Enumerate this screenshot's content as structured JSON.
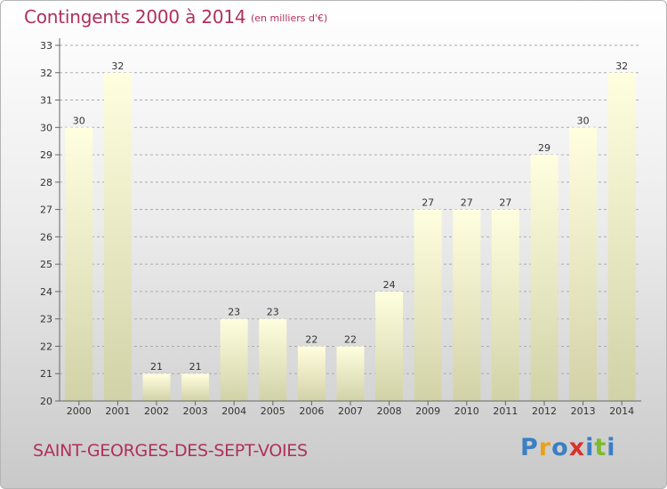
{
  "header": {
    "title": "Contingents 2000 à 2014",
    "subtitle": "(en milliers d'€)"
  },
  "footer": {
    "commune": "SAINT-GEORGES-DES-SEPT-VOIES",
    "logo_letters": [
      "P",
      "r",
      "o",
      "x",
      "i",
      "t",
      "i"
    ],
    "logo_colors": [
      "#3b7fc4",
      "#e8a21a",
      "#3b7fc4",
      "#d8322c",
      "#3b7fc4",
      "#7dbb2e",
      "#3b7fc4"
    ]
  },
  "colors": {
    "title": "#b0305a",
    "bar_top": "#ffffe0",
    "bar_bottom": "#d2d2a8",
    "grid": "#aaaaaa"
  },
  "chart_data": {
    "type": "bar",
    "categories": [
      "2000",
      "2001",
      "2002",
      "2003",
      "2004",
      "2005",
      "2006",
      "2007",
      "2008",
      "2009",
      "2010",
      "2011",
      "2012",
      "2013",
      "2014"
    ],
    "values": [
      30,
      32,
      21,
      21,
      23,
      23,
      22,
      22,
      24,
      27,
      27,
      27,
      29,
      30,
      32
    ],
    "ylim": [
      20,
      33
    ],
    "yticks": [
      20,
      21,
      22,
      23,
      24,
      25,
      26,
      27,
      28,
      29,
      30,
      31,
      32,
      33
    ],
    "grid": true,
    "data_labels": true
  }
}
